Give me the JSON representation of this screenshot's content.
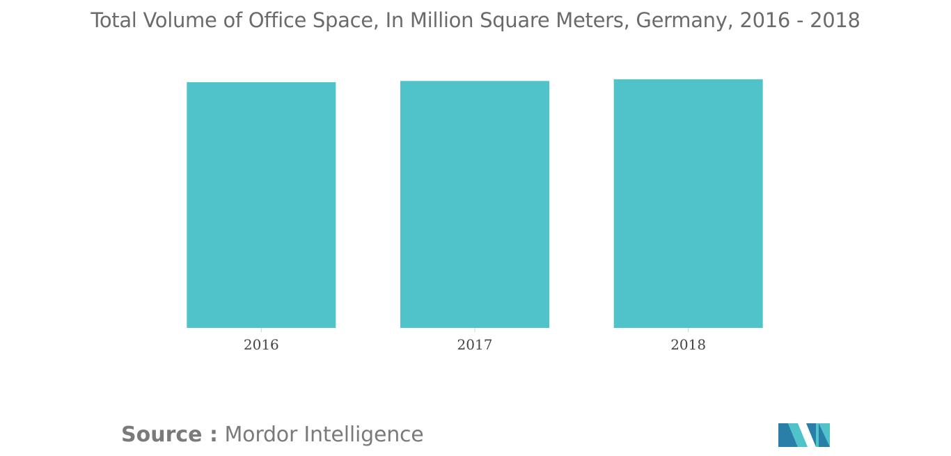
{
  "chart_data": {
    "type": "bar",
    "title": "Total Volume of Office Space, In Million Square Meters, Germany, 2016 - 2018",
    "categories": [
      "2016",
      "2017",
      "2018"
    ],
    "values": [
      100,
      100.5,
      101.2
    ],
    "xlabel": "",
    "ylabel": "",
    "ylim": [
      0,
      102
    ],
    "grid": false,
    "legend": "none",
    "bar_color": "#50c3ca",
    "axis_color": "#cfcfcf"
  },
  "footer": {
    "source_label": "Source :",
    "source_value": "Mordor Intelligence"
  },
  "logo": {
    "icon": "mordor-intelligence-logo-icon",
    "colors": [
      "#2a7fa8",
      "#50c3ca"
    ]
  }
}
